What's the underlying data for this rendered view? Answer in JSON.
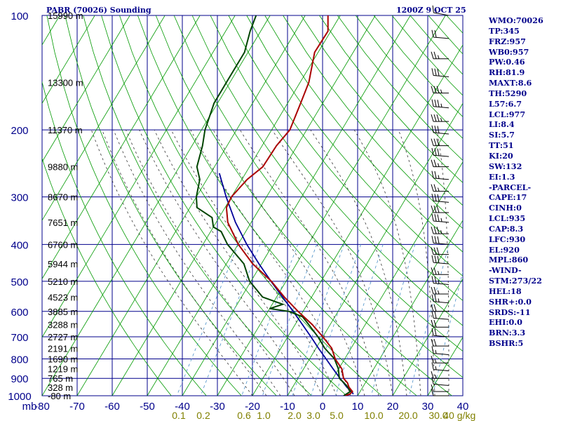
{
  "header": {
    "title": "PABR (70026) Sounding",
    "datetime": "1200Z  9 OCT 25"
  },
  "stats": [
    "WMO:70026",
    "TP:345",
    "FRZ:957",
    "WB0:957",
    "PW:0.46",
    "RH:81.9",
    "MAXT:8.6",
    "TH:5290",
    "L57:6.7",
    "LCL:977",
    "LI:8.4",
    "SI:5.7",
    "TT:51",
    "KI:20",
    "SW:132",
    "EI:1.3",
    "-PARCEL-",
    "CAPE:17",
    "CINH:0",
    "LCL:935",
    "CAP:8.3",
    "LFC:930",
    "EL:920",
    "MPL:860",
    "-WIND-",
    "STM:273/22",
    "HEL:18",
    "SHR+:0.0",
    "SRDS:-11",
    "EHI:0.0",
    "BRN:3.3",
    "BSHR:5"
  ],
  "colors": {
    "grid": "#00008b",
    "dry_adiabat": "#009900",
    "mixing_ratio": "#4a90c8",
    "moist_adiabat": "#333333",
    "temperature": "#aa0000",
    "dewpoint": "#004400",
    "parcel": "#000099",
    "text": "#00008b",
    "mixing_label": "#808000",
    "wind_barb": "#000000"
  },
  "chart_data": {
    "type": "skew-t",
    "ylabel": "mb",
    "pressure_ticks": [
      100,
      200,
      300,
      400,
      500,
      600,
      700,
      800,
      900,
      1000
    ],
    "temperature_ticks": [
      -80,
      -70,
      -60,
      -50,
      -40,
      -30,
      -20,
      -10,
      0,
      10,
      20,
      30,
      40
    ],
    "height_labels": [
      {
        "p": 100,
        "label": "15990 m"
      },
      {
        "p": 150,
        "label": "13300 m"
      },
      {
        "p": 200,
        "label": "11370 m"
      },
      {
        "p": 250,
        "label": "9880 m"
      },
      {
        "p": 300,
        "label": "8670 m"
      },
      {
        "p": 350,
        "label": "7651 m"
      },
      {
        "p": 400,
        "label": "6760 m"
      },
      {
        "p": 450,
        "label": "5944 m"
      },
      {
        "p": 500,
        "label": "5210 m"
      },
      {
        "p": 550,
        "label": "4523 m"
      },
      {
        "p": 600,
        "label": "3885 m"
      },
      {
        "p": 650,
        "label": "3288 m"
      },
      {
        "p": 700,
        "label": "2727 m"
      },
      {
        "p": 750,
        "label": "2191 m"
      },
      {
        "p": 800,
        "label": "1690 m"
      },
      {
        "p": 850,
        "label": "1219 m"
      },
      {
        "p": 900,
        "label": "765 m"
      },
      {
        "p": 950,
        "label": "328 m"
      },
      {
        "p": 1000,
        "label": "-80 m"
      }
    ],
    "mixing_ratio_labels": [
      "0.1",
      "0.2",
      "0.6",
      "1.0",
      "2.0",
      "3.0",
      "5.0",
      "10.0",
      "20.0",
      "30.0",
      "40",
      "g/kg"
    ],
    "temperature": [
      {
        "p": 1000,
        "t": 6.5
      },
      {
        "p": 990,
        "t": 7.5
      },
      {
        "p": 975,
        "t": 7.8
      },
      {
        "p": 950,
        "t": 6.1
      },
      {
        "p": 925,
        "t": 4.9
      },
      {
        "p": 900,
        "t": 3.0
      },
      {
        "p": 850,
        "t": 0.9
      },
      {
        "p": 800,
        "t": -2.7
      },
      {
        "p": 750,
        "t": -5.5
      },
      {
        "p": 700,
        "t": -10.0
      },
      {
        "p": 650,
        "t": -15.1
      },
      {
        "p": 600,
        "t": -21.4
      },
      {
        "p": 550,
        "t": -27.8
      },
      {
        "p": 500,
        "t": -34.2
      },
      {
        "p": 450,
        "t": -42.5
      },
      {
        "p": 400,
        "t": -49.9
      },
      {
        "p": 350,
        "t": -56.7
      },
      {
        "p": 320,
        "t": -59.6
      },
      {
        "p": 300,
        "t": -60.0
      },
      {
        "p": 270,
        "t": -58.5
      },
      {
        "p": 250,
        "t": -56.2
      },
      {
        "p": 220,
        "t": -55.9
      },
      {
        "p": 200,
        "t": -54.8
      },
      {
        "p": 170,
        "t": -56.3
      },
      {
        "p": 150,
        "t": -57.5
      },
      {
        "p": 125,
        "t": -61.0
      },
      {
        "p": 110,
        "t": -60.8
      },
      {
        "p": 100,
        "t": -63.5
      }
    ],
    "dewpoint": [
      {
        "p": 1000,
        "t": 6.0
      },
      {
        "p": 990,
        "t": 6.5
      },
      {
        "p": 975,
        "t": 7.2
      },
      {
        "p": 950,
        "t": 5.8
      },
      {
        "p": 925,
        "t": 3.9
      },
      {
        "p": 900,
        "t": 1.8
      },
      {
        "p": 850,
        "t": -0.1
      },
      {
        "p": 800,
        "t": -2.9
      },
      {
        "p": 750,
        "t": -7.5
      },
      {
        "p": 700,
        "t": -11.4
      },
      {
        "p": 650,
        "t": -16.1
      },
      {
        "p": 620,
        "t": -19.2
      },
      {
        "p": 600,
        "t": -24.0
      },
      {
        "p": 590,
        "t": -30.0
      },
      {
        "p": 575,
        "t": -27.0
      },
      {
        "p": 550,
        "t": -34.0
      },
      {
        "p": 500,
        "t": -40.4
      },
      {
        "p": 450,
        "t": -45.0
      },
      {
        "p": 400,
        "t": -53.0
      },
      {
        "p": 370,
        "t": -57.0
      },
      {
        "p": 360,
        "t": -60.0
      },
      {
        "p": 340,
        "t": -62.0
      },
      {
        "p": 320,
        "t": -68.0
      },
      {
        "p": 300,
        "t": -70.0
      },
      {
        "p": 270,
        "t": -72.0
      },
      {
        "p": 250,
        "t": -75.0
      },
      {
        "p": 220,
        "t": -77.0
      },
      {
        "p": 200,
        "t": -79.0
      },
      {
        "p": 170,
        "t": -81.0
      },
      {
        "p": 150,
        "t": -81.0
      },
      {
        "p": 125,
        "t": -81.0
      },
      {
        "p": 110,
        "t": -83.0
      },
      {
        "p": 100,
        "t": -84.0
      }
    ],
    "parcel": [
      {
        "p": 990,
        "t": 8.5
      },
      {
        "p": 975,
        "t": 7.5
      },
      {
        "p": 950,
        "t": 5.5
      },
      {
        "p": 900,
        "t": 2.0
      },
      {
        "p": 850,
        "t": -1.6
      },
      {
        "p": 800,
        "t": -5.3
      },
      {
        "p": 750,
        "t": -9.3
      },
      {
        "p": 700,
        "t": -13.4
      },
      {
        "p": 650,
        "t": -17.9
      },
      {
        "p": 600,
        "t": -22.8
      },
      {
        "p": 550,
        "t": -28.3
      },
      {
        "p": 500,
        "t": -34.3
      },
      {
        "p": 450,
        "t": -40.7
      },
      {
        "p": 400,
        "t": -47.5
      },
      {
        "p": 350,
        "t": -54.5
      },
      {
        "p": 300,
        "t": -61.5
      },
      {
        "p": 260,
        "t": -67.5
      }
    ],
    "wind_barbs": [
      {
        "p": 100,
        "dir": 280,
        "spd": 15
      },
      {
        "p": 115,
        "dir": 275,
        "spd": 20
      },
      {
        "p": 130,
        "dir": 270,
        "spd": 25
      },
      {
        "p": 145,
        "dir": 275,
        "spd": 30
      },
      {
        "p": 160,
        "dir": 270,
        "spd": 35
      },
      {
        "p": 175,
        "dir": 275,
        "spd": 35
      },
      {
        "p": 190,
        "dir": 270,
        "spd": 35
      },
      {
        "p": 205,
        "dir": 275,
        "spd": 30
      },
      {
        "p": 220,
        "dir": 270,
        "spd": 30
      },
      {
        "p": 235,
        "dir": 275,
        "spd": 30
      },
      {
        "p": 250,
        "dir": 270,
        "spd": 25
      },
      {
        "p": 270,
        "dir": 275,
        "spd": 25
      },
      {
        "p": 290,
        "dir": 270,
        "spd": 25
      },
      {
        "p": 310,
        "dir": 275,
        "spd": 30
      },
      {
        "p": 330,
        "dir": 270,
        "spd": 30
      },
      {
        "p": 350,
        "dir": 275,
        "spd": 35
      },
      {
        "p": 375,
        "dir": 270,
        "spd": 35
      },
      {
        "p": 400,
        "dir": 275,
        "spd": 30
      },
      {
        "p": 425,
        "dir": 270,
        "spd": 30
      },
      {
        "p": 450,
        "dir": 275,
        "spd": 30
      },
      {
        "p": 480,
        "dir": 270,
        "spd": 25
      },
      {
        "p": 510,
        "dir": 275,
        "spd": 25
      },
      {
        "p": 540,
        "dir": 270,
        "spd": 25
      },
      {
        "p": 570,
        "dir": 275,
        "spd": 25
      },
      {
        "p": 600,
        "dir": 270,
        "spd": 20
      },
      {
        "p": 630,
        "dir": 275,
        "spd": 20
      },
      {
        "p": 660,
        "dir": 270,
        "spd": 20
      },
      {
        "p": 700,
        "dir": 275,
        "spd": 20
      },
      {
        "p": 740,
        "dir": 270,
        "spd": 20
      },
      {
        "p": 780,
        "dir": 275,
        "spd": 15
      },
      {
        "p": 820,
        "dir": 270,
        "spd": 15
      },
      {
        "p": 860,
        "dir": 275,
        "spd": 15
      },
      {
        "p": 900,
        "dir": 270,
        "spd": 15
      },
      {
        "p": 940,
        "dir": 275,
        "spd": 10
      },
      {
        "p": 975,
        "dir": 270,
        "spd": 10
      },
      {
        "p": 1000,
        "dir": 270,
        "spd": 10
      }
    ]
  }
}
